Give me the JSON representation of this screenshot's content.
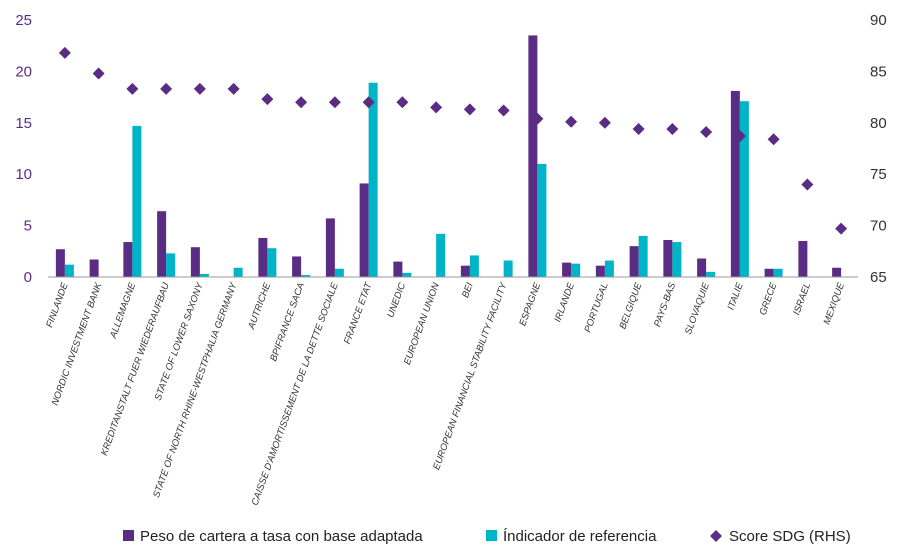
{
  "chart_data": {
    "type": "bar",
    "categories": [
      "FINLANDE",
      "NORDIC INVESTMENT BANK",
      "ALLEMAGNE",
      "KREDITANSTALT FUER WIEDERAUFBAU",
      "STATE OF LOWER SAXONY",
      "STATE OF NORTH RHINE-WESTPHALIA GERMANY",
      "AUTRICHE",
      "BPIFRANCE SACA",
      "CAISSE D'AMORTISSEMENT DE LA DETTE SOCIALE",
      "FRANCE ETAT",
      "UNEDIC",
      "EUROPEAN UNION",
      "BEI",
      "EUROPEAN FINANCIAL STABILITY FACILITY",
      "ESPAGNE",
      "IRLANDE",
      "PORTUGAL",
      "BELGIQUE",
      "PAYS-BAS",
      "SLOVAQUIE",
      "ITALIE",
      "GRECE",
      "ISRAEL",
      "MEXIQUE"
    ],
    "series": [
      {
        "name": "Peso de cartera a tasa con base adaptada",
        "type": "bar",
        "axis": "left",
        "color": "#5b2c83",
        "values": [
          2.7,
          1.7,
          3.4,
          6.4,
          2.9,
          0,
          3.8,
          2.0,
          5.7,
          9.1,
          1.5,
          0,
          1.1,
          0,
          23.5,
          1.4,
          1.1,
          3.0,
          3.6,
          1.8,
          18.1,
          0.8,
          3.5,
          0.9
        ]
      },
      {
        "name": "Índicador de referencia",
        "type": "bar",
        "axis": "left",
        "color": "#00b4c8",
        "values": [
          1.2,
          0,
          14.7,
          2.3,
          0.3,
          0.9,
          2.8,
          0.2,
          0.8,
          18.9,
          0.4,
          4.2,
          2.1,
          1.6,
          11.0,
          1.3,
          1.6,
          4.0,
          3.4,
          0.5,
          17.1,
          0.8,
          0,
          0
        ]
      },
      {
        "name": "Score SDG (RHS)",
        "type": "scatter",
        "axis": "right",
        "color": "#5b2c83",
        "values": [
          86.8,
          84.8,
          83.3,
          83.3,
          83.3,
          83.3,
          82.3,
          82.0,
          82.0,
          82.0,
          82.0,
          81.5,
          81.3,
          81.2,
          80.4,
          80.1,
          80.0,
          79.4,
          79.4,
          79.1,
          78.7,
          78.4,
          74.0,
          69.7
        ]
      }
    ],
    "ylim": [
      0,
      25
    ],
    "yticks": [
      "0",
      "5",
      "10",
      "15",
      "20",
      "25"
    ],
    "y2lim": [
      65,
      90
    ],
    "y2ticks": [
      "65",
      "70",
      "75",
      "80",
      "85",
      "90"
    ],
    "xlabel": "",
    "ylabel": "",
    "legend_position": "bottom",
    "grid": false
  }
}
